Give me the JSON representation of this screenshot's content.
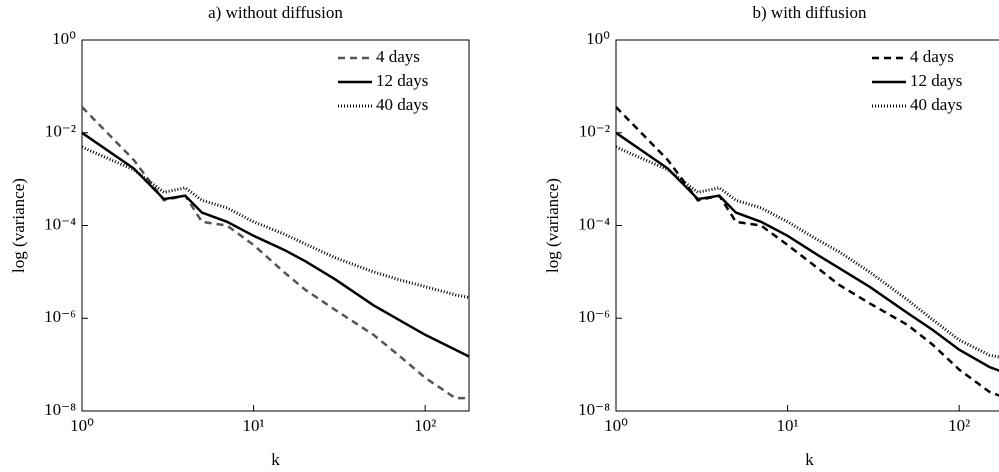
{
  "chart_data": [
    {
      "type": "line",
      "title": "a) without diffusion",
      "xlabel": "k",
      "ylabel": "log (variance)",
      "xscale": "log",
      "yscale": "log",
      "xlim": [
        1,
        180
      ],
      "ylim": [
        1e-08,
        1
      ],
      "xticks": [
        {
          "value": 1,
          "label": "10⁰"
        },
        {
          "value": 10,
          "label": "10¹"
        },
        {
          "value": 100,
          "label": "10²"
        }
      ],
      "yticks": [
        {
          "value": 1e-08,
          "label": "10⁻⁸"
        },
        {
          "value": 1e-06,
          "label": "10⁻⁶"
        },
        {
          "value": 0.0001,
          "label": "10⁻⁴"
        },
        {
          "value": 0.01,
          "label": "10⁻²"
        },
        {
          "value": 1,
          "label": "10⁰"
        }
      ],
      "legend": "upper right",
      "x": [
        1,
        2,
        3,
        4,
        5,
        7,
        10,
        15,
        20,
        30,
        50,
        70,
        100,
        150,
        180
      ],
      "series": [
        {
          "name": "4 days",
          "color": "#555555",
          "style": "dashed",
          "values": [
            0.036,
            0.0026,
            0.00035,
            0.00044,
            0.00012,
            0.0001,
            3.8e-05,
            1e-05,
            4.1e-06,
            1.5e-06,
            4.4e-07,
            1.6e-07,
            5.2e-08,
            1.9e-08,
            1.9e-08
          ]
        },
        {
          "name": "12 days",
          "color": "#000000",
          "style": "solid",
          "values": [
            0.01,
            0.0017,
            0.00037,
            0.00044,
            0.00019,
            0.00012,
            6e-05,
            3e-05,
            1.7e-05,
            6.8e-06,
            1.9e-06,
            9.3e-07,
            4.4e-07,
            2.1e-07,
            1.5e-07
          ]
        },
        {
          "name": "40 days",
          "color": "#000000",
          "style": "dotted",
          "values": [
            0.0049,
            0.0016,
            0.00052,
            0.00065,
            0.00035,
            0.00024,
            0.00012,
            6.6e-05,
            4e-05,
            2e-05,
            1e-05,
            6.8e-06,
            4.8e-06,
            3.2e-06,
            2.8e-06
          ]
        }
      ]
    },
    {
      "type": "line",
      "title": "b) with diffusion",
      "xlabel": "k",
      "ylabel": "log (variance)",
      "xscale": "log",
      "yscale": "log",
      "xlim": [
        1,
        180
      ],
      "ylim": [
        1e-08,
        1
      ],
      "xticks": [
        {
          "value": 1,
          "label": "10⁰"
        },
        {
          "value": 10,
          "label": "10¹"
        },
        {
          "value": 100,
          "label": "10²"
        }
      ],
      "yticks": [
        {
          "value": 1e-08,
          "label": "10⁻⁸"
        },
        {
          "value": 1e-06,
          "label": "10⁻⁶"
        },
        {
          "value": 0.0001,
          "label": "10⁻⁴"
        },
        {
          "value": 0.01,
          "label": "10⁻²"
        },
        {
          "value": 1,
          "label": "10⁰"
        }
      ],
      "legend": "upper right",
      "x": [
        1,
        2,
        3,
        4,
        5,
        7,
        10,
        15,
        20,
        30,
        50,
        70,
        100,
        150,
        180
      ],
      "series": [
        {
          "name": "4 days",
          "color": "#000000",
          "style": "dashed",
          "values": [
            0.036,
            0.0026,
            0.00035,
            0.00044,
            0.00012,
            0.0001,
            3.8e-05,
            1.2e-05,
            5.2e-06,
            2.1e-06,
            7.2e-07,
            2.7e-07,
            7.8e-08,
            2.6e-08,
            2e-08
          ]
        },
        {
          "name": "12 days",
          "color": "#000000",
          "style": "solid",
          "values": [
            0.01,
            0.0017,
            0.00037,
            0.00044,
            0.00019,
            0.00012,
            6e-05,
            2.3e-05,
            1.2e-05,
            4.8e-06,
            1.3e-06,
            5.6e-07,
            2.1e-07,
            8.9e-08,
            6.9e-08
          ]
        },
        {
          "name": "40 days",
          "color": "#000000",
          "style": "dotted",
          "values": [
            0.0049,
            0.0016,
            0.00052,
            0.00065,
            0.00035,
            0.00024,
            0.00012,
            4.9e-05,
            2.7e-05,
            1e-05,
            2.5e-06,
            9.3e-07,
            3.4e-07,
            1.6e-07,
            1.4e-07
          ]
        }
      ]
    }
  ]
}
